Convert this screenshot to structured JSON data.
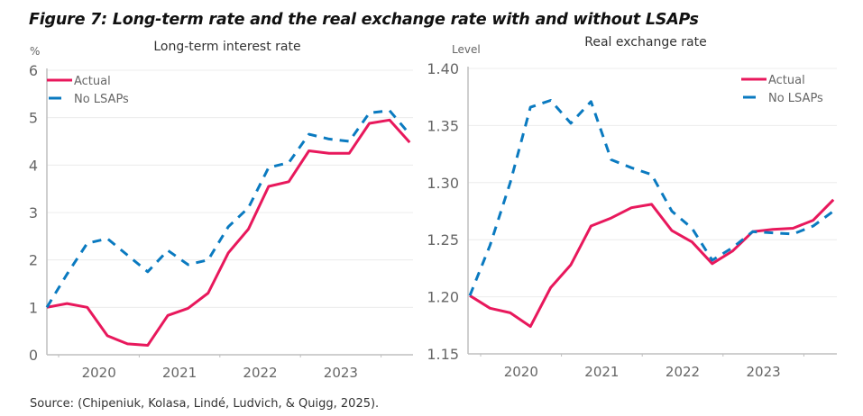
{
  "figure": {
    "title": "Figure 7: Long-term rate and the real exchange rate with and without LSAPs",
    "source": "Source: (Chipeniuk, Kolasa, Lindé, Ludvich, & Quigg, 2025)."
  },
  "colors": {
    "actual": "#e8185c",
    "no_lsaps": "#0a7ac0",
    "grid": "#ececec",
    "axis": "#bfbfbf"
  },
  "chart_data": [
    {
      "type": "line",
      "title": "Long-term interest rate",
      "ylabel": "%",
      "xlabel": "",
      "ylim": [
        0,
        6
      ],
      "yticks": [
        "0",
        "1",
        "2",
        "3",
        "4",
        "5",
        "6"
      ],
      "ytick_values": [
        0,
        1,
        2,
        3,
        4,
        5,
        6
      ],
      "xtick_labels": [
        "2020",
        "2021",
        "2022",
        "2023"
      ],
      "x_start": "2019Q4",
      "x": [
        "2019Q4",
        "2020Q1",
        "2020Q2",
        "2020Q3",
        "2020Q4",
        "2021Q1",
        "2021Q2",
        "2021Q3",
        "2021Q4",
        "2022Q1",
        "2022Q2",
        "2022Q3",
        "2022Q4",
        "2023Q1",
        "2023Q2",
        "2023Q3",
        "2023Q4",
        "2024Q1",
        "2024Q2"
      ],
      "grid": true,
      "legend_position": "top-left",
      "series": [
        {
          "name": "Actual",
          "style": "solid",
          "values": [
            1.0,
            1.08,
            1.0,
            0.4,
            0.23,
            0.2,
            0.83,
            0.98,
            1.3,
            2.15,
            2.65,
            3.55,
            3.65,
            4.3,
            4.25,
            4.25,
            4.88,
            4.95,
            4.48
          ]
        },
        {
          "name": "No LSAPs",
          "style": "dashed",
          "values": [
            1.0,
            1.7,
            2.35,
            2.45,
            2.1,
            1.75,
            2.2,
            1.9,
            2.0,
            2.7,
            3.1,
            3.95,
            4.05,
            4.65,
            4.55,
            4.5,
            5.1,
            5.15,
            4.65
          ]
        }
      ]
    },
    {
      "type": "line",
      "title": "Real exchange rate",
      "ylabel": "Level",
      "xlabel": "",
      "ylim": [
        1.15,
        1.4
      ],
      "yticks": [
        "1.15",
        "1.20",
        "1.25",
        "1.30",
        "1.35",
        "1.40"
      ],
      "ytick_values": [
        1.15,
        1.2,
        1.25,
        1.3,
        1.35,
        1.4
      ],
      "xtick_labels": [
        "2020",
        "2021",
        "2022",
        "2023"
      ],
      "x_start": "2019Q4",
      "x": [
        "2019Q4",
        "2020Q1",
        "2020Q2",
        "2020Q3",
        "2020Q4",
        "2021Q1",
        "2021Q2",
        "2021Q3",
        "2021Q4",
        "2022Q1",
        "2022Q2",
        "2022Q3",
        "2022Q4",
        "2023Q1",
        "2023Q2",
        "2023Q3",
        "2023Q4",
        "2024Q1",
        "2024Q2"
      ],
      "grid": true,
      "legend_position": "top-right",
      "series": [
        {
          "name": "Actual",
          "style": "solid",
          "values": [
            1.201,
            1.19,
            1.186,
            1.174,
            1.208,
            1.228,
            1.262,
            1.269,
            1.278,
            1.281,
            1.258,
            1.248,
            1.229,
            1.24,
            1.257,
            1.259,
            1.26,
            1.267,
            1.285
          ]
        },
        {
          "name": "No LSAPs",
          "style": "dashed",
          "values": [
            1.201,
            1.245,
            1.3,
            1.366,
            1.372,
            1.352,
            1.371,
            1.32,
            1.313,
            1.307,
            1.275,
            1.26,
            1.232,
            1.243,
            1.257,
            1.256,
            1.255,
            1.262,
            1.275
          ]
        }
      ]
    }
  ]
}
